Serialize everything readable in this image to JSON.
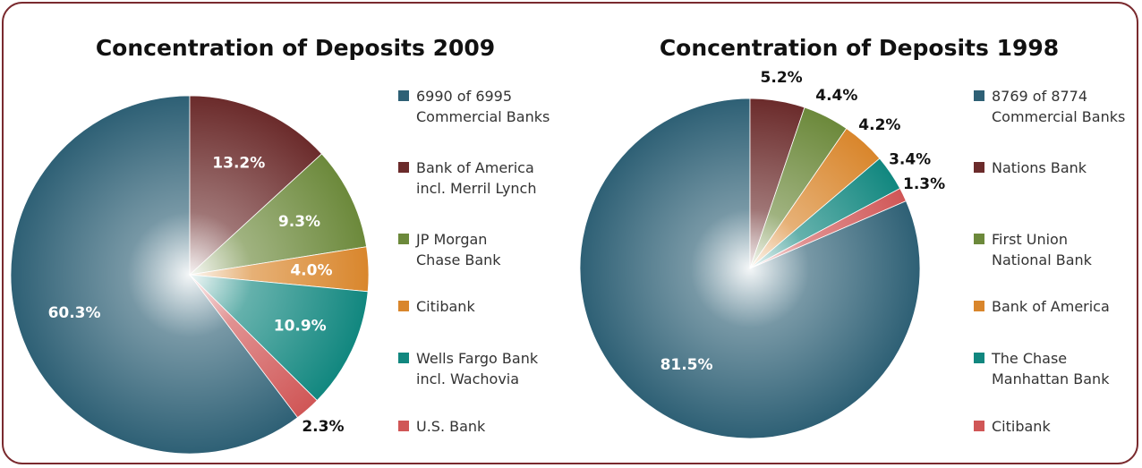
{
  "chart_data": [
    {
      "type": "pie",
      "title": "Concentration of Deposits 2009",
      "series": [
        {
          "name": "6990 of 6995\nCommercial Banks",
          "color": "#2e6075"
        },
        {
          "name": "Bank of America\nincl. Merril Lynch",
          "color": "#6b2b2b"
        },
        {
          "name": "JP Morgan\nChase Bank",
          "color": "#6c893b"
        },
        {
          "name": "Citibank",
          "color": "#d9862c"
        },
        {
          "name": "Wells Fargo Bank\nincl. Wachovia",
          "color": "#11877f"
        },
        {
          "name": "U.S. Bank",
          "color": "#d05656"
        }
      ],
      "values": [
        60.3,
        13.2,
        9.3,
        4.0,
        10.9,
        2.3
      ],
      "value_labels": [
        "60.3%",
        "13.2%",
        "9.3%",
        "4.0%",
        "10.9%",
        "2.3%"
      ]
    },
    {
      "type": "pie",
      "title": "Concentration of Deposits 1998",
      "series": [
        {
          "name": "8769 of 8774\nCommercial Banks",
          "color": "#2e6075"
        },
        {
          "name": "Nations Bank",
          "color": "#6b2b2b"
        },
        {
          "name": "First Union\nNational Bank",
          "color": "#6c893b"
        },
        {
          "name": "Bank of America",
          "color": "#d9862c"
        },
        {
          "name": "The Chase\nManhattan Bank",
          "color": "#11877f"
        },
        {
          "name": "Citibank",
          "color": "#d05656"
        }
      ],
      "values": [
        81.5,
        5.2,
        4.4,
        4.2,
        3.4,
        1.3
      ],
      "value_labels": [
        "81.5%",
        "5.2%",
        "4.4%",
        "4.2%",
        "3.4%",
        "1.3%"
      ]
    }
  ]
}
